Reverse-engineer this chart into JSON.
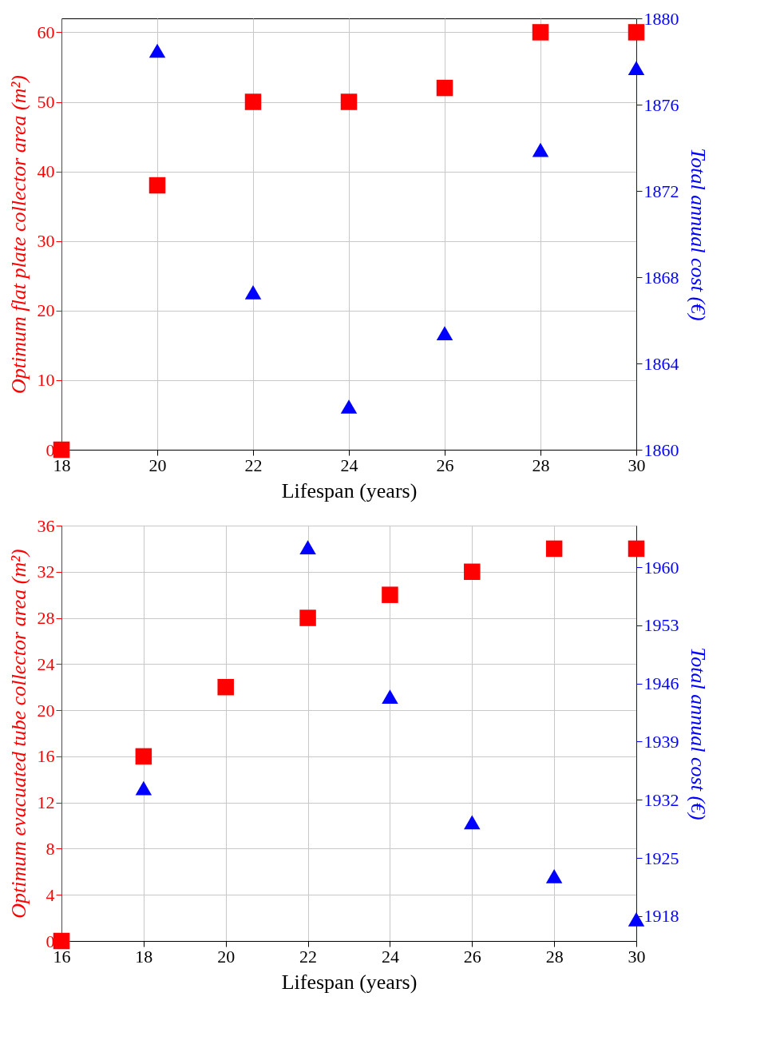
{
  "chart_data": [
    {
      "type": "scatter",
      "x": [
        18,
        20,
        22,
        24,
        26,
        28,
        30
      ],
      "xlim": [
        18,
        30
      ],
      "xticks": [
        18,
        20,
        22,
        24,
        26,
        28,
        30
      ],
      "ylim": [
        0,
        62
      ],
      "yticks": [
        0,
        10,
        20,
        30,
        40,
        50,
        60
      ],
      "y2lim": [
        1860,
        1880
      ],
      "y2ticks": [
        1860,
        1864,
        1868,
        1872,
        1876,
        1880
      ],
      "xlabel": "Lifespan (years)",
      "ylabel": "Optimum flat plate collector area (m²)",
      "y2label": "Total annual cost (€)",
      "grid": true,
      "series": [
        {
          "color": "#ff0000",
          "marker": "square",
          "values": [
            0,
            38,
            50,
            50,
            52,
            60,
            60
          ]
        },
        {
          "color": "#0000ff",
          "marker": "triangle",
          "axis": "y2",
          "values": [
            null,
            1878.5,
            1867.3,
            1862,
            1865.4,
            1873.9,
            1877.7
          ]
        }
      ]
    },
    {
      "type": "scatter",
      "x": [
        16,
        18,
        20,
        22,
        24,
        26,
        28,
        30
      ],
      "xlim": [
        16,
        30
      ],
      "xticks": [
        16,
        18,
        20,
        22,
        24,
        26,
        28,
        30
      ],
      "ylim": [
        0,
        36
      ],
      "yticks": [
        0,
        4,
        8,
        12,
        16,
        20,
        24,
        28,
        32,
        36
      ],
      "y2lim": [
        1915,
        1965
      ],
      "y2ticks": [
        1918,
        1925,
        1932,
        1939,
        1946,
        1953,
        1960
      ],
      "xlabel": "Lifespan (years)",
      "ylabel": "Optimum evacuated tube collector area (m²)",
      "y2label": "Total annual cost (€)",
      "grid": true,
      "series": [
        {
          "color": "#ff0000",
          "marker": "square",
          "values": [
            0,
            16,
            22,
            28,
            30,
            32,
            34,
            34
          ]
        },
        {
          "color": "#0000ff",
          "marker": "triangle",
          "axis": "y2",
          "values": [
            null,
            1933.4,
            null,
            1962.4,
            1944.4,
            1929.3,
            1922.8,
            1917.6
          ]
        }
      ]
    }
  ]
}
